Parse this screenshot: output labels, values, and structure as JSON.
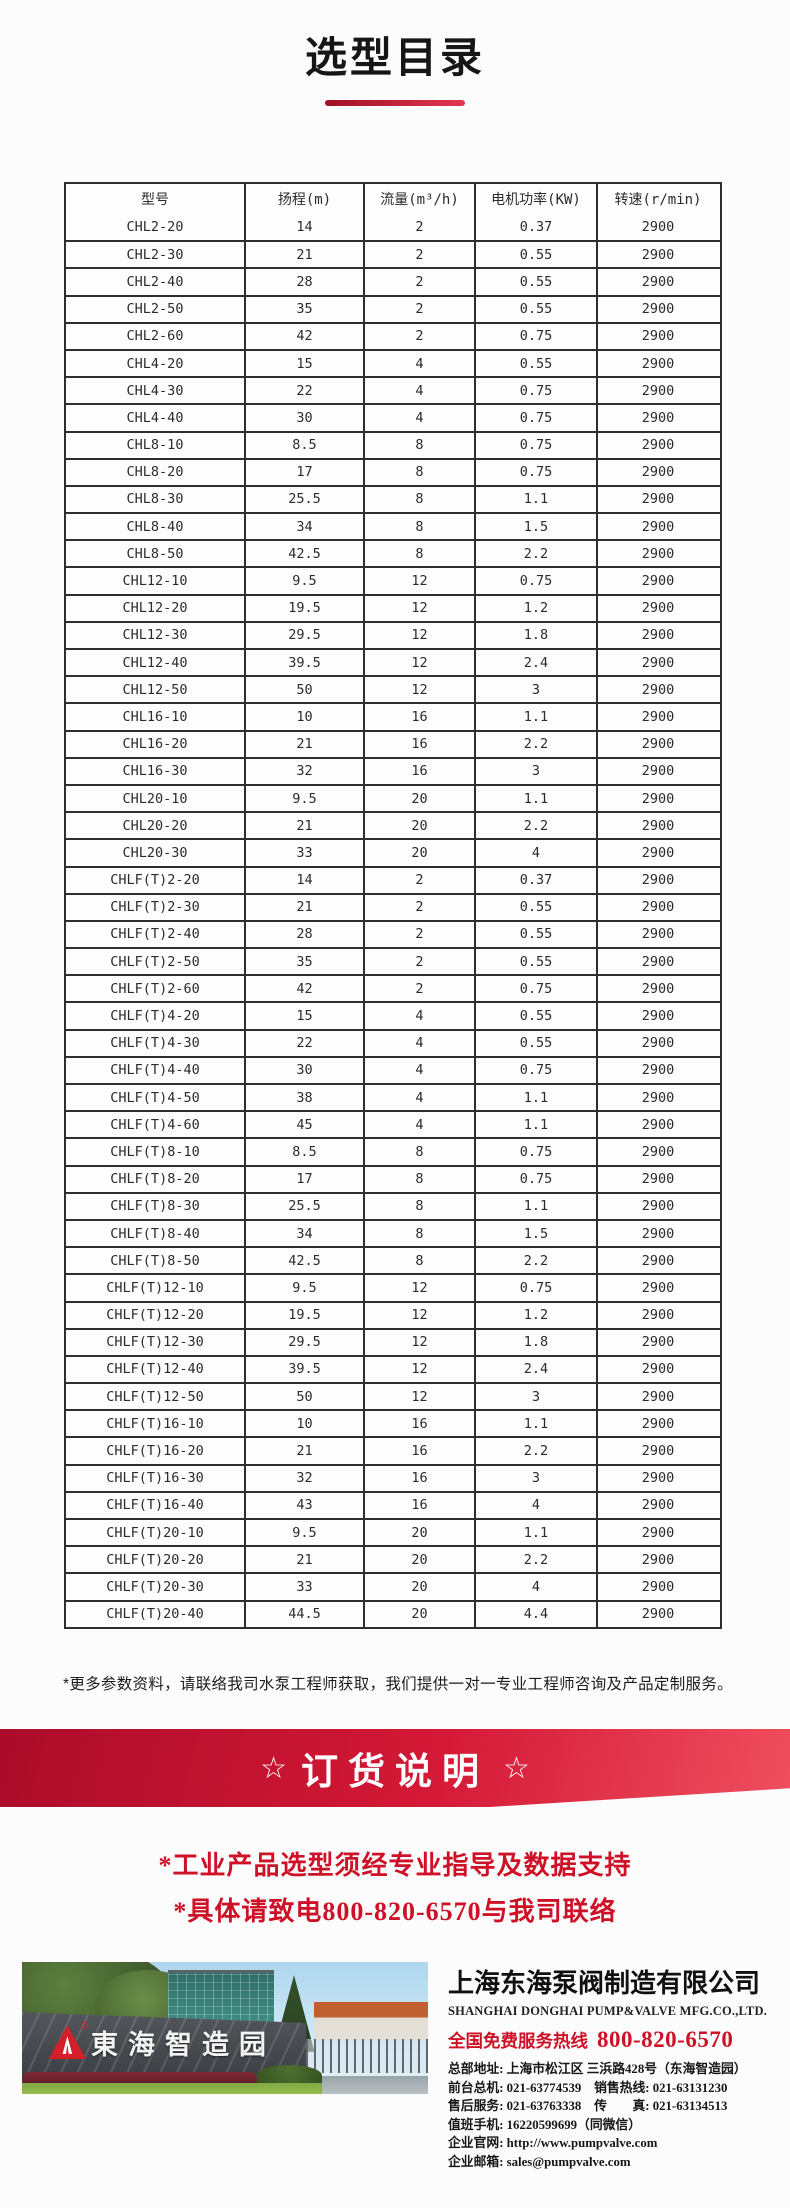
{
  "page": {
    "title": "选型目录"
  },
  "colors": {
    "accent_red": "#ce1127",
    "banner_gradient_dark": "#ab0c29",
    "banner_gradient_light": "#ef4f5f",
    "table_border": "#2e2e2e",
    "logo_red": "#d21f2a"
  },
  "table": {
    "headers": [
      "型号",
      "扬程(m)",
      "流量(m³/h)",
      "电机功率(KW)",
      "转速(r/min)"
    ],
    "rows": [
      [
        "CHL2-20",
        "14",
        "2",
        "0.37",
        "2900"
      ],
      [
        "CHL2-30",
        "21",
        "2",
        "0.55",
        "2900"
      ],
      [
        "CHL2-40",
        "28",
        "2",
        "0.55",
        "2900"
      ],
      [
        "CHL2-50",
        "35",
        "2",
        "0.55",
        "2900"
      ],
      [
        "CHL2-60",
        "42",
        "2",
        "0.75",
        "2900"
      ],
      [
        "CHL4-20",
        "15",
        "4",
        "0.55",
        "2900"
      ],
      [
        "CHL4-30",
        "22",
        "4",
        "0.75",
        "2900"
      ],
      [
        "CHL4-40",
        "30",
        "4",
        "0.75",
        "2900"
      ],
      [
        "CHL8-10",
        "8.5",
        "8",
        "0.75",
        "2900"
      ],
      [
        "CHL8-20",
        "17",
        "8",
        "0.75",
        "2900"
      ],
      [
        "CHL8-30",
        "25.5",
        "8",
        "1.1",
        "2900"
      ],
      [
        "CHL8-40",
        "34",
        "8",
        "1.5",
        "2900"
      ],
      [
        "CHL8-50",
        "42.5",
        "8",
        "2.2",
        "2900"
      ],
      [
        "CHL12-10",
        "9.5",
        "12",
        "0.75",
        "2900"
      ],
      [
        "CHL12-20",
        "19.5",
        "12",
        "1.2",
        "2900"
      ],
      [
        "CHL12-30",
        "29.5",
        "12",
        "1.8",
        "2900"
      ],
      [
        "CHL12-40",
        "39.5",
        "12",
        "2.4",
        "2900"
      ],
      [
        "CHL12-50",
        "50",
        "12",
        "3",
        "2900"
      ],
      [
        "CHL16-10",
        "10",
        "16",
        "1.1",
        "2900"
      ],
      [
        "CHL16-20",
        "21",
        "16",
        "2.2",
        "2900"
      ],
      [
        "CHL16-30",
        "32",
        "16",
        "3",
        "2900"
      ],
      [
        "CHL20-10",
        "9.5",
        "20",
        "1.1",
        "2900"
      ],
      [
        "CHL20-20",
        "21",
        "20",
        "2.2",
        "2900"
      ],
      [
        "CHL20-30",
        "33",
        "20",
        "4",
        "2900"
      ],
      [
        "CHLF(T)2-20",
        "14",
        "2",
        "0.37",
        "2900"
      ],
      [
        "CHLF(T)2-30",
        "21",
        "2",
        "0.55",
        "2900"
      ],
      [
        "CHLF(T)2-40",
        "28",
        "2",
        "0.55",
        "2900"
      ],
      [
        "CHLF(T)2-50",
        "35",
        "2",
        "0.55",
        "2900"
      ],
      [
        "CHLF(T)2-60",
        "42",
        "2",
        "0.75",
        "2900"
      ],
      [
        "CHLF(T)4-20",
        "15",
        "4",
        "0.55",
        "2900"
      ],
      [
        "CHLF(T)4-30",
        "22",
        "4",
        "0.55",
        "2900"
      ],
      [
        "CHLF(T)4-40",
        "30",
        "4",
        "0.75",
        "2900"
      ],
      [
        "CHLF(T)4-50",
        "38",
        "4",
        "1.1",
        "2900"
      ],
      [
        "CHLF(T)4-60",
        "45",
        "4",
        "1.1",
        "2900"
      ],
      [
        "CHLF(T)8-10",
        "8.5",
        "8",
        "0.75",
        "2900"
      ],
      [
        "CHLF(T)8-20",
        "17",
        "8",
        "0.75",
        "2900"
      ],
      [
        "CHLF(T)8-30",
        "25.5",
        "8",
        "1.1",
        "2900"
      ],
      [
        "CHLF(T)8-40",
        "34",
        "8",
        "1.5",
        "2900"
      ],
      [
        "CHLF(T)8-50",
        "42.5",
        "8",
        "2.2",
        "2900"
      ],
      [
        "CHLF(T)12-10",
        "9.5",
        "12",
        "0.75",
        "2900"
      ],
      [
        "CHLF(T)12-20",
        "19.5",
        "12",
        "1.2",
        "2900"
      ],
      [
        "CHLF(T)12-30",
        "29.5",
        "12",
        "1.8",
        "2900"
      ],
      [
        "CHLF(T)12-40",
        "39.5",
        "12",
        "2.4",
        "2900"
      ],
      [
        "CHLF(T)12-50",
        "50",
        "12",
        "3",
        "2900"
      ],
      [
        "CHLF(T)16-10",
        "10",
        "16",
        "1.1",
        "2900"
      ],
      [
        "CHLF(T)16-20",
        "21",
        "16",
        "2.2",
        "2900"
      ],
      [
        "CHLF(T)16-30",
        "32",
        "16",
        "3",
        "2900"
      ],
      [
        "CHLF(T)16-40",
        "43",
        "16",
        "4",
        "2900"
      ],
      [
        "CHLF(T)20-10",
        "9.5",
        "20",
        "1.1",
        "2900"
      ],
      [
        "CHLF(T)20-20",
        "21",
        "20",
        "2.2",
        "2900"
      ],
      [
        "CHLF(T)20-30",
        "33",
        "20",
        "4",
        "2900"
      ],
      [
        "CHLF(T)20-40",
        "44.5",
        "20",
        "4.4",
        "2900"
      ]
    ]
  },
  "footnote": "*更多参数资料，请联络我司水泵工程师获取，我们提供一对一专业工程师咨询及产品定制服务。",
  "order_section": {
    "star": "☆",
    "title": "订货说明",
    "notes": [
      "*工业产品选型须经专业指导及数据支持",
      "*具体请致电800-820-6570与我司联络"
    ]
  },
  "company": {
    "name_cn": "上海东海泵阀制造有限公司",
    "name_en": "SHANGHAI DONGHAI PUMP&VALVE MFG.CO.,LTD.",
    "hotline_label": "全国免费服务热线",
    "hotline_number": "800-820-6570",
    "contact_lines": [
      "总部地址: 上海市松江区 三浜路428号（东海智造园）",
      "前台总机: 021-63774539　销售热线: 021-63131230",
      "售后服务: 021-63763338　传　　真: 021-63134513",
      "值班手机: 16220599699（同微信）",
      "企业官网: http://www.pumpvalve.com",
      "企业邮箱: sales@pumpvalve.com"
    ]
  },
  "photo": {
    "sign_text": "東海智造园"
  }
}
